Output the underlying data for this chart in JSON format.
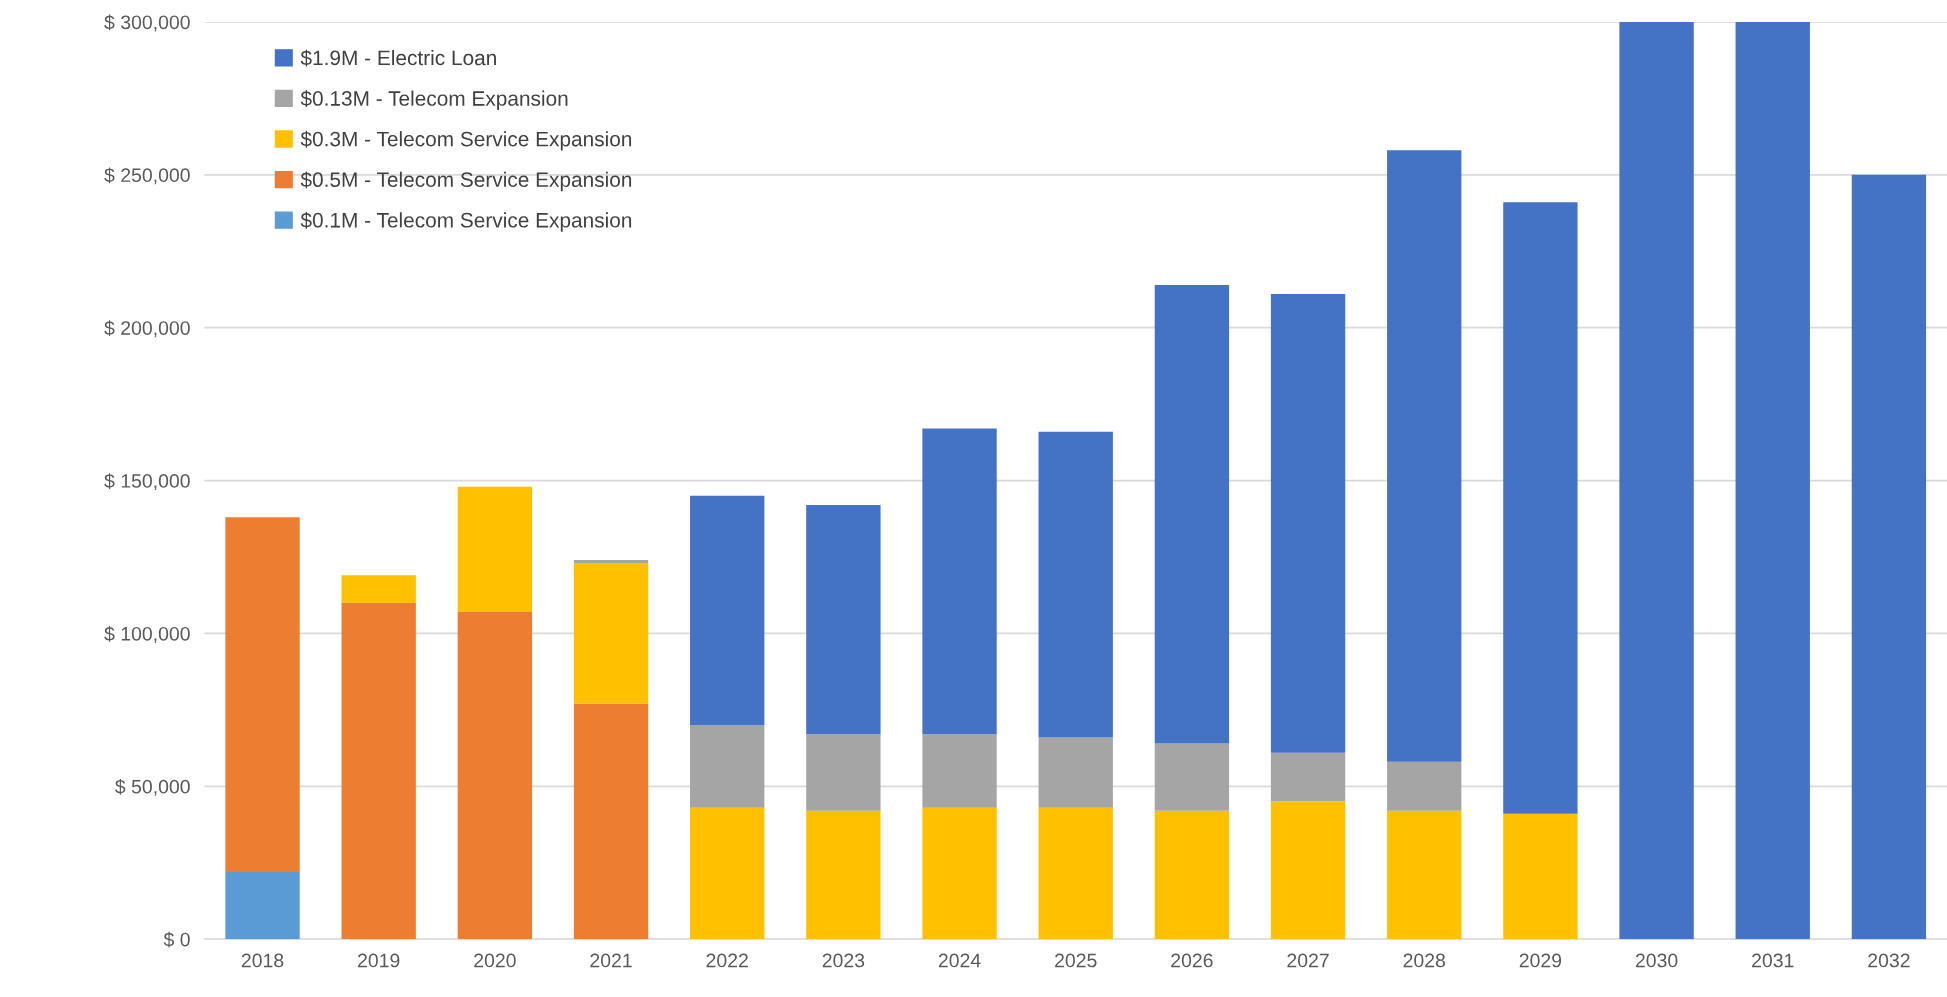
{
  "chart_data": {
    "type": "bar",
    "stacked": true,
    "categories": [
      "2018",
      "2019",
      "2020",
      "2021",
      "2022",
      "2023",
      "2024",
      "2025",
      "2026",
      "2027",
      "2028",
      "2029",
      "2030",
      "2031",
      "2032"
    ],
    "series": [
      {
        "name": "$0.1M - Telecom Service Expansion",
        "color": "#5b9bd5",
        "values": [
          22000,
          null,
          null,
          null,
          null,
          null,
          null,
          null,
          null,
          null,
          null,
          null,
          null,
          null,
          null
        ]
      },
      {
        "name": "$0.5M - Telecom Service Expansion",
        "color": "#ed7d31",
        "values": [
          116000,
          110000,
          107000,
          77000,
          null,
          null,
          null,
          null,
          null,
          null,
          null,
          null,
          null,
          null,
          null
        ]
      },
      {
        "name": "$0.3M - Telecom Service Expansion",
        "color": "#ffc000",
        "values": [
          null,
          9000,
          41000,
          46000,
          43000,
          42000,
          43000,
          43000,
          42000,
          45000,
          42000,
          41000,
          null,
          null,
          null
        ]
      },
      {
        "name": "$0.13M - Telecom Expansion",
        "color": "#a5a5a5",
        "values": [
          null,
          null,
          null,
          1000,
          27000,
          25000,
          24000,
          23000,
          22000,
          16000,
          16000,
          null,
          null,
          null,
          null
        ]
      },
      {
        "name": "$1.9M - Electric Loan",
        "color": "#4472c4",
        "values": [
          null,
          null,
          null,
          null,
          75000,
          75000,
          100000,
          100000,
          150000,
          150000,
          200000,
          200000,
          300000,
          300000,
          250000
        ]
      }
    ],
    "ylim": [
      0,
      300000
    ],
    "yticks": [
      {
        "value": 0,
        "label": "$ 0"
      },
      {
        "value": 50000,
        "label": "$ 50,000"
      },
      {
        "value": 100000,
        "label": "$ 100,000"
      },
      {
        "value": 150000,
        "label": "$ 150,000"
      },
      {
        "value": 200000,
        "label": "$ 200,000"
      },
      {
        "value": 250000,
        "label": "$ 250,000"
      },
      {
        "value": 300000,
        "label": "$ 300,000"
      }
    ],
    "grid": "y",
    "legend": "top left"
  }
}
